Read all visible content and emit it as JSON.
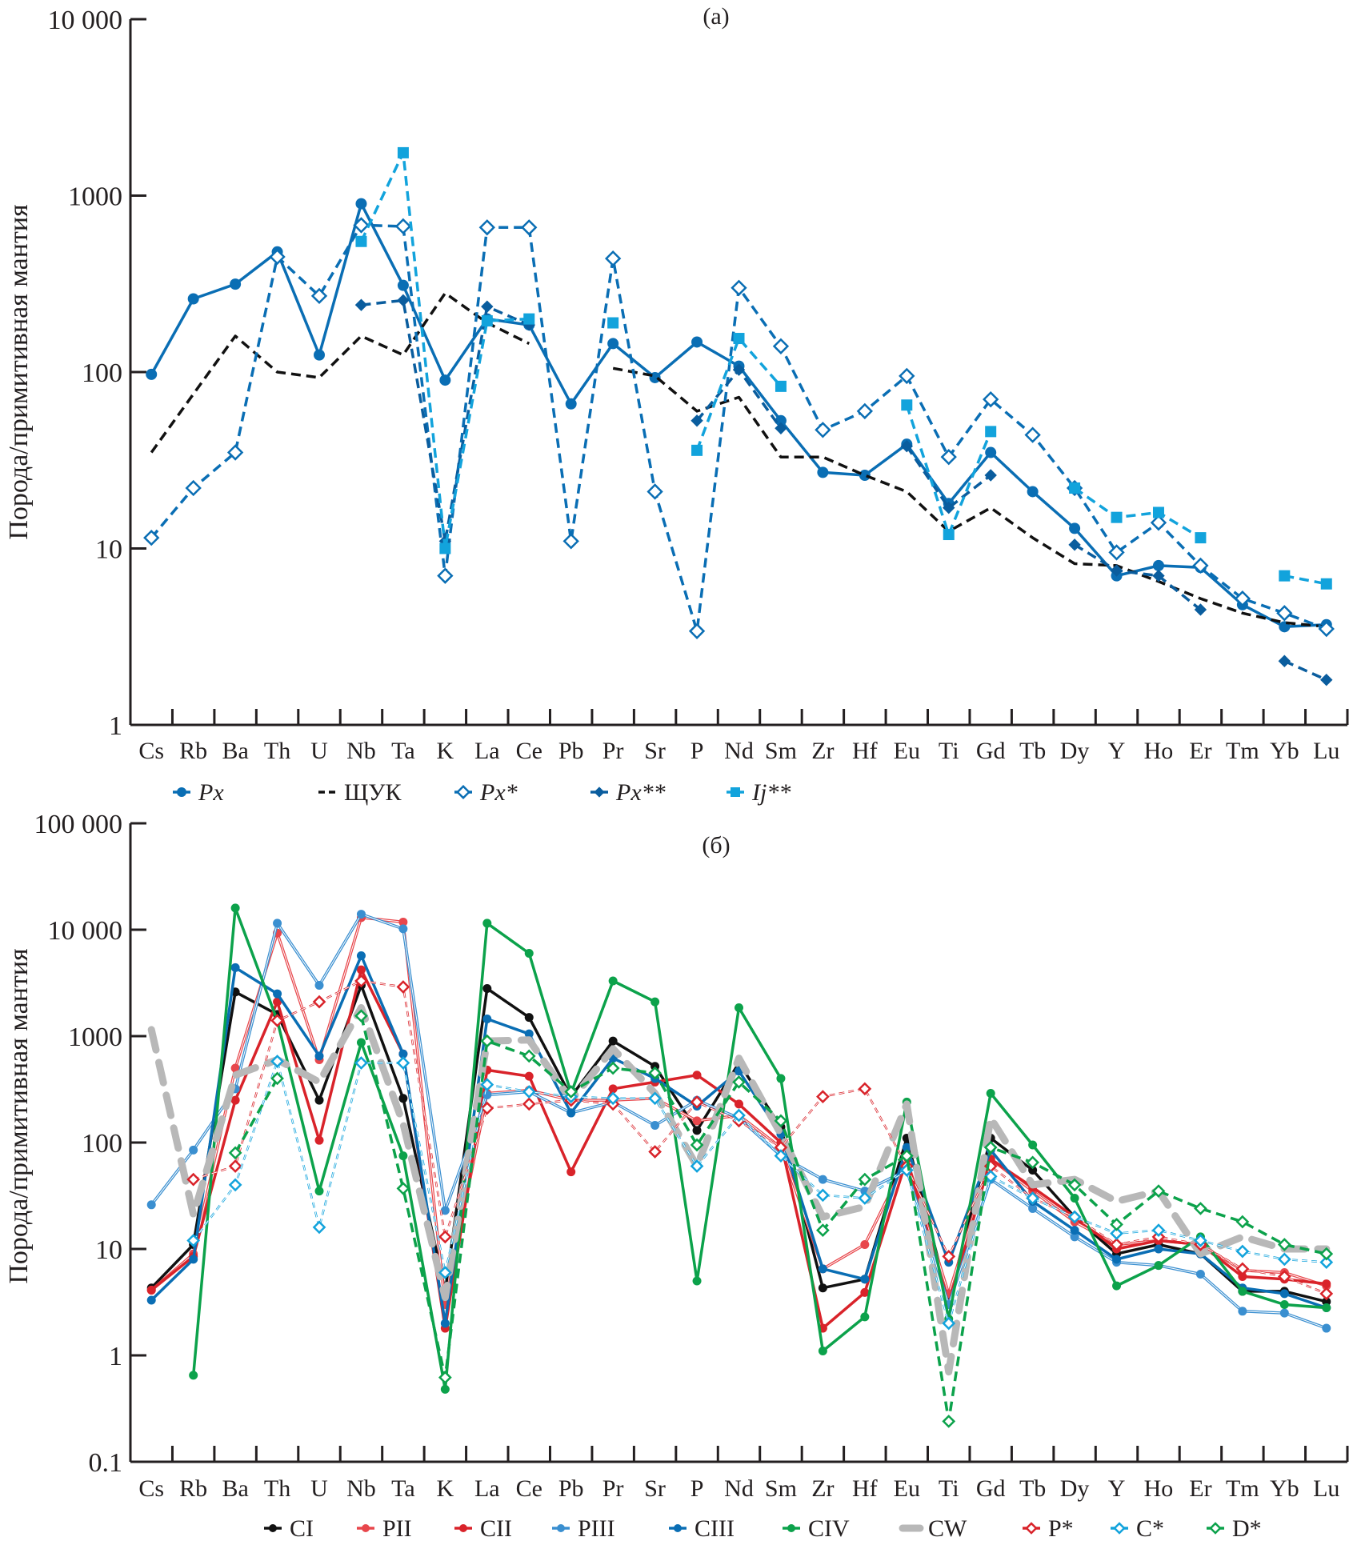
{
  "chart_data": [
    {
      "type": "line",
      "panel": "a",
      "title": "(a)",
      "xlabel": "",
      "ylabel": "Порода/примитивная мантия",
      "yscale": "log",
      "ylim": [
        1,
        10000
      ],
      "yticks": [
        "1",
        "10",
        "100",
        "1000",
        "10 000"
      ],
      "ytick_values": [
        1,
        10,
        100,
        1000,
        10000
      ],
      "categories": [
        "Cs",
        "Rb",
        "Ba",
        "Th",
        "U",
        "Nb",
        "Ta",
        "K",
        "La",
        "Ce",
        "Pb",
        "Pr",
        "Sr",
        "P",
        "Nd",
        "Sm",
        "Zr",
        "Hf",
        "Eu",
        "Ti",
        "Gd",
        "Tb",
        "Dy",
        "Y",
        "Ho",
        "Er",
        "Tm",
        "Yb",
        "Lu"
      ],
      "grid": false,
      "legend_position": "bottom",
      "series": [
        {
          "name": "Px",
          "italic": true,
          "color": "#0a6eb4",
          "style": "solid",
          "marker": "circle-filled",
          "values": [
            97,
            260,
            315,
            480,
            125,
            900,
            310,
            90,
            200,
            185,
            66,
            145,
            93,
            148,
            108,
            53,
            27,
            26,
            39,
            18,
            35,
            21,
            13,
            7,
            8,
            7.8,
            4.8,
            3.6,
            3.7
          ]
        },
        {
          "name": "ЩУК",
          "italic": false,
          "color": "#111111",
          "style": "dashed",
          "marker": "none",
          "values": [
            35,
            75,
            160,
            100,
            93,
            160,
            125,
            280,
            190,
            145,
            null,
            105,
            95,
            60,
            72,
            33,
            33,
            26,
            21,
            12.5,
            17,
            11.5,
            8.2,
            8,
            6.5,
            5.2,
            4.3,
            3.8,
            3.6
          ]
        },
        {
          "name": "Px*",
          "italic": true,
          "color": "#0a6eb4",
          "style": "dashed",
          "marker": "diamond-open",
          "values": [
            11.5,
            22,
            35,
            450,
            270,
            680,
            670,
            7,
            660,
            660,
            11,
            440,
            21,
            3.4,
            300,
            140,
            47,
            60,
            95,
            33,
            70,
            44,
            22,
            9.5,
            14,
            8,
            5.2,
            4.3,
            3.5
          ]
        },
        {
          "name": "Px**",
          "italic": true,
          "color": "#0a5d9e",
          "style": "dashed",
          "marker": "diamond-filled",
          "values": [
            null,
            null,
            null,
            null,
            null,
            240,
            255,
            11,
            235,
            185,
            null,
            null,
            null,
            53,
            103,
            48,
            null,
            null,
            38,
            17,
            26,
            null,
            10.5,
            7.5,
            7,
            4.5,
            null,
            2.3,
            1.8
          ]
        },
        {
          "name": "Ij**",
          "italic": true,
          "color": "#12a3dc",
          "style": "dashed",
          "marker": "square-filled",
          "values": [
            null,
            null,
            null,
            null,
            null,
            550,
            1750,
            10,
            195,
            200,
            null,
            190,
            null,
            36,
            155,
            83,
            null,
            null,
            65,
            12,
            46,
            null,
            22,
            15,
            16,
            11.5,
            null,
            7,
            6.3
          ]
        }
      ]
    },
    {
      "type": "line",
      "panel": "b",
      "title": "(б)",
      "xlabel": "",
      "ylabel": "Порода/примитивная мантия",
      "yscale": "log",
      "ylim": [
        0.1,
        100000
      ],
      "yticks": [
        "0.1",
        "1",
        "10",
        "100",
        "1000",
        "10 000",
        "100 000"
      ],
      "ytick_values": [
        0.1,
        1,
        10,
        100,
        1000,
        10000,
        100000
      ],
      "categories": [
        "Cs",
        "Rb",
        "Ba",
        "Th",
        "U",
        "Nb",
        "Ta",
        "K",
        "La",
        "Ce",
        "Pb",
        "Pr",
        "Sr",
        "P",
        "Nd",
        "Sm",
        "Zr",
        "Hf",
        "Eu",
        "Ti",
        "Gd",
        "Tb",
        "Dy",
        "Y",
        "Ho",
        "Er",
        "Tm",
        "Yb",
        "Lu"
      ],
      "grid": false,
      "legend_position": "bottom",
      "series": [
        {
          "name": "CI",
          "color": "#111111",
          "style": "solid",
          "marker": "circle-filled",
          "values": [
            4.3,
            11,
            2600,
            1600,
            250,
            3000,
            260,
            4,
            2800,
            1500,
            270,
            900,
            520,
            130,
            560,
            140,
            4.3,
            5.2,
            110,
            3.3,
            110,
            55,
            20,
            9,
            11,
            9,
            4,
            4,
            3.2
          ]
        },
        {
          "name": "PII",
          "color": "#e8474c",
          "style": "double",
          "marker": "circle-filled",
          "values": [
            4.1,
            9,
            500,
            9300,
            600,
            13000,
            11800,
            3,
            290,
            310,
            250,
            250,
            260,
            160,
            180,
            90,
            6.5,
            11,
            70,
            3.8,
            70,
            35,
            18,
            11,
            12,
            11,
            6.3,
            6,
            4.5
          ]
        },
        {
          "name": "CII",
          "color": "#d9232a",
          "style": "solid",
          "marker": "circle-filled",
          "values": [
            4.1,
            8.5,
            250,
            2100,
            105,
            4200,
            680,
            1.8,
            480,
            420,
            53,
            320,
            370,
            430,
            230,
            100,
            1.8,
            3.9,
            70,
            3.0,
            70,
            38,
            20,
            10,
            12,
            11,
            5.5,
            5.2,
            4.7
          ]
        },
        {
          "name": "PIII",
          "color": "#3a8fd0",
          "style": "double",
          "marker": "circle-filled",
          "values": [
            26,
            85,
            320,
            11500,
            3000,
            14000,
            10200,
            23,
            280,
            300,
            190,
            240,
            145,
            250,
            170,
            75,
            45,
            35,
            55,
            3.0,
            45,
            24,
            13,
            7.5,
            7,
            5.8,
            2.6,
            2.5,
            1.8
          ]
        },
        {
          "name": "CIII",
          "color": "#0a6eb4",
          "style": "solid",
          "marker": "circle-filled",
          "values": [
            3.3,
            8,
            4400,
            2500,
            650,
            5700,
            680,
            2,
            1450,
            1050,
            190,
            620,
            400,
            220,
            470,
            120,
            6.5,
            5.2,
            90,
            7.5,
            85,
            28,
            15,
            8,
            10,
            9,
            4.3,
            3.8,
            2.8
          ]
        },
        {
          "name": "CIV",
          "color": "#0ca24b",
          "style": "solid",
          "marker": "circle-filled",
          "values": [
            null,
            0.65,
            16000,
            1400,
            35,
            870,
            75,
            0.48,
            11500,
            6000,
            290,
            3300,
            2100,
            5,
            1850,
            400,
            1.1,
            2.3,
            240,
            2.2,
            290,
            95,
            30,
            4.5,
            7,
            13,
            4,
            3,
            2.8
          ]
        },
        {
          "name": "CW",
          "color": "#b8b8b8",
          "style": "thick-dashed",
          "marker": "none",
          "values": [
            1150,
            21,
            430,
            600,
            370,
            1850,
            150,
            3.5,
            900,
            920,
            250,
            760,
            290,
            60,
            620,
            120,
            20,
            25,
            230,
            0.7,
            170,
            40,
            45,
            28,
            35,
            9,
            13,
            10,
            10
          ]
        },
        {
          "name": "P*",
          "color": "#d9232a",
          "style": "dotted",
          "marker": "diamond-open",
          "values": [
            null,
            45,
            60,
            1400,
            2100,
            3300,
            2900,
            13,
            210,
            230,
            250,
            230,
            82,
            240,
            160,
            90,
            270,
            320,
            60,
            8.5,
            60,
            30,
            20,
            11,
            13,
            11,
            6.5,
            5.5,
            3.8
          ]
        },
        {
          "name": "C*",
          "color": "#12a3dc",
          "style": "dotted",
          "marker": "diamond-open",
          "values": [
            null,
            12,
            40,
            580,
            16,
            560,
            560,
            6,
            350,
            300,
            270,
            260,
            260,
            60,
            180,
            75,
            32,
            30,
            55,
            2,
            48,
            30,
            20,
            14,
            15,
            12,
            9.5,
            8,
            7.5
          ]
        },
        {
          "name": "D*",
          "color": "#0ca24b",
          "style": "dashed",
          "marker": "diamond-open",
          "values": [
            null,
            null,
            80,
            400,
            null,
            1550,
            37,
            0.62,
            900,
            650,
            300,
            500,
            450,
            95,
            370,
            160,
            15,
            45,
            75,
            0.24,
            90,
            65,
            40,
            17,
            35,
            24,
            18,
            11,
            9
          ]
        }
      ]
    }
  ]
}
